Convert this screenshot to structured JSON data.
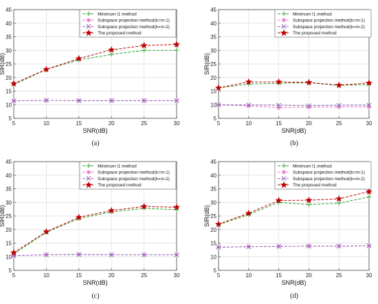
{
  "chart_data": [
    {
      "type": "line",
      "caption": "(a)",
      "xlabel": "SNR(dB)",
      "ylabel": "SIR(dB)",
      "xlim": [
        5,
        30
      ],
      "ylim": [
        5,
        45
      ],
      "xticks": [
        5,
        10,
        15,
        20,
        25,
        30
      ],
      "yticks": [
        5,
        10,
        15,
        20,
        25,
        30,
        35,
        40,
        45
      ],
      "grid": true,
      "legend_position": "top-right",
      "x": [
        5,
        10,
        15,
        20,
        25,
        30
      ],
      "series": [
        {
          "name": "Minimum l1 method",
          "color": "#2ca02c",
          "marker": "plus",
          "values": [
            17.3,
            23.0,
            26.5,
            28.5,
            30.0,
            30.0
          ]
        },
        {
          "name": "Subspace projection method(k=m-1)",
          "color": "#e377c2",
          "marker": "asterisk",
          "values": [
            11.4,
            11.6,
            11.5,
            11.5,
            11.5,
            11.5
          ]
        },
        {
          "name": "Subspace projection method(k=m-2)",
          "color": "#9467bd",
          "marker": "cross",
          "values": [
            11.4,
            11.6,
            11.5,
            11.5,
            11.5,
            11.5
          ]
        },
        {
          "name": "The proposed method",
          "color": "#c00000",
          "marker": "star",
          "values": [
            17.8,
            23.0,
            27.0,
            30.2,
            31.8,
            32.2
          ]
        }
      ]
    },
    {
      "type": "line",
      "caption": "(b)",
      "xlabel": "SNR(dB)",
      "ylabel": "SIR(dB)",
      "xlim": [
        5,
        30
      ],
      "ylim": [
        5,
        45
      ],
      "xticks": [
        5,
        10,
        15,
        20,
        25,
        30
      ],
      "yticks": [
        5,
        10,
        15,
        20,
        25,
        30,
        35,
        40,
        45
      ],
      "grid": true,
      "legend_position": "top-right",
      "x": [
        5,
        10,
        15,
        20,
        25,
        30
      ],
      "series": [
        {
          "name": "Minimum l1 method",
          "color": "#2ca02c",
          "marker": "plus",
          "values": [
            16.2,
            17.6,
            17.9,
            18.1,
            17.1,
            17.4
          ]
        },
        {
          "name": "Subspace projection method(k=m-1)",
          "color": "#e377c2",
          "marker": "asterisk",
          "values": [
            9.9,
            9.6,
            8.9,
            9.1,
            9.2,
            9.2
          ]
        },
        {
          "name": "Subspace projection method(k=m-2)",
          "color": "#9467bd",
          "marker": "cross",
          "values": [
            10.0,
            9.9,
            9.8,
            9.6,
            9.8,
            9.8
          ]
        },
        {
          "name": "The proposed method",
          "color": "#c00000",
          "marker": "star",
          "values": [
            16.2,
            18.4,
            18.4,
            18.2,
            17.2,
            18.0
          ]
        }
      ]
    },
    {
      "type": "line",
      "caption": "(c)",
      "xlabel": "SNR(dB)",
      "ylabel": "SIR(dB)",
      "xlim": [
        5,
        30
      ],
      "ylim": [
        5,
        45
      ],
      "xticks": [
        5,
        10,
        15,
        20,
        25,
        30
      ],
      "yticks": [
        5,
        10,
        15,
        20,
        25,
        30,
        35,
        40,
        45
      ],
      "grid": true,
      "legend_position": "top-right",
      "x": [
        5,
        10,
        15,
        20,
        25,
        30
      ],
      "series": [
        {
          "name": "Minimum l1 method",
          "color": "#2ca02c",
          "marker": "plus",
          "values": [
            11.0,
            19.0,
            24.0,
            26.5,
            27.8,
            27.3
          ]
        },
        {
          "name": "Subspace projection method(k=m-1)",
          "color": "#e377c2",
          "marker": "asterisk",
          "values": [
            10.4,
            10.7,
            10.8,
            10.7,
            10.7,
            10.7
          ]
        },
        {
          "name": "Subspace projection method(k=m-2)",
          "color": "#9467bd",
          "marker": "cross",
          "values": [
            10.4,
            10.7,
            10.8,
            10.7,
            10.7,
            10.7
          ]
        },
        {
          "name": "The proposed method",
          "color": "#c00000",
          "marker": "star",
          "values": [
            11.5,
            19.2,
            24.5,
            27.0,
            28.5,
            28.2
          ]
        }
      ]
    },
    {
      "type": "line",
      "caption": "(d)",
      "xlabel": "SNR(dB)",
      "ylabel": "SIR(dB)",
      "xlim": [
        5,
        30
      ],
      "ylim": [
        5,
        45
      ],
      "xticks": [
        5,
        10,
        15,
        20,
        25,
        30
      ],
      "yticks": [
        5,
        10,
        15,
        20,
        25,
        30,
        35,
        40,
        45
      ],
      "grid": true,
      "legend_position": "top-left",
      "x": [
        5,
        10,
        15,
        20,
        25,
        30
      ],
      "series": [
        {
          "name": "Minimum l1 method",
          "color": "#2ca02c",
          "marker": "plus",
          "values": [
            21.8,
            25.5,
            30.0,
            29.2,
            29.7,
            32.0
          ]
        },
        {
          "name": "Subspace projection method(k=m-1)",
          "color": "#e377c2",
          "marker": "asterisk",
          "values": [
            13.5,
            13.7,
            13.8,
            13.9,
            13.9,
            14.0
          ]
        },
        {
          "name": "Subspace projection method(k=m-2)",
          "color": "#9467bd",
          "marker": "cross",
          "values": [
            13.5,
            13.7,
            13.8,
            13.9,
            13.9,
            14.0
          ]
        },
        {
          "name": "The proposed method",
          "color": "#c00000",
          "marker": "star",
          "values": [
            22.0,
            26.0,
            30.7,
            30.8,
            31.3,
            34.0
          ]
        }
      ]
    }
  ]
}
